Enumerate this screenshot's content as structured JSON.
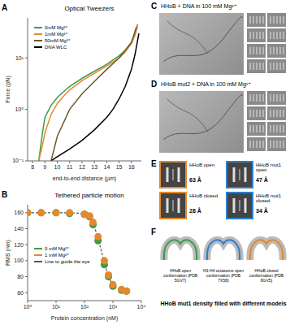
{
  "chart_data": [
    {
      "panel_label": "A",
      "type": "line",
      "title": "Optical Tweezers",
      "x_label": "end-to-end distance (µm)",
      "y_label": "Force (pN)",
      "log": "y",
      "legend": "upper left",
      "xlim": [
        7.6,
        16.8
      ],
      "xticks": [
        8,
        9,
        10,
        11,
        12,
        13,
        14,
        15,
        16
      ],
      "ylim": [
        0.1,
        60
      ],
      "yticks": [
        {
          "value": 0.1,
          "label": "10⁻¹"
        },
        {
          "value": 1,
          "label": "10⁰"
        },
        {
          "value": 10,
          "label": "10¹"
        }
      ],
      "series": [
        {
          "name": "0mM Mg²⁺",
          "color": "#3f9a4c",
          "x": [
            8.5,
            8.8,
            9,
            9.5,
            10,
            10.5,
            11,
            12,
            13,
            14,
            15,
            15.5,
            16,
            16.3,
            16.5
          ],
          "values": [
            0.1,
            0.35,
            0.7,
            1.2,
            1.7,
            2.2,
            2.8,
            4,
            5.5,
            7.5,
            11,
            14,
            20,
            30,
            45
          ]
        },
        {
          "name": "1mM Mg²⁺",
          "color": "#e4892c",
          "x": [
            8.5,
            8.8,
            9,
            9.5,
            10,
            10.5,
            11,
            12,
            13,
            14,
            15,
            15.5,
            16,
            16.3,
            16.5
          ],
          "values": [
            0.1,
            0.2,
            0.35,
            0.8,
            1.3,
            1.8,
            2.4,
            3.6,
            5,
            7,
            10,
            13,
            19,
            28,
            42
          ]
        },
        {
          "name": "50mM Mg²⁺",
          "color": "#6b5a2a",
          "x": [
            9.5,
            10,
            11,
            12,
            13,
            14,
            15,
            16,
            16.4
          ],
          "values": [
            0.1,
            0.3,
            1,
            2,
            3.5,
            6,
            10,
            20,
            40
          ]
        },
        {
          "name": "DNA WLC",
          "color": "#000000",
          "x": [
            9.5,
            10,
            11,
            12,
            13,
            14,
            14.5,
            15,
            15.5,
            16,
            16.3,
            16.6
          ],
          "values": [
            0.1,
            0.12,
            0.17,
            0.25,
            0.4,
            0.7,
            1,
            1.6,
            2.8,
            6,
            12,
            30
          ]
        }
      ]
    },
    {
      "panel_label": "B",
      "type": "scatter",
      "title": "Tethered particle motion",
      "x_label": "Protein concentration (nM)",
      "y_label": "RMS (nm)",
      "log": "x",
      "legend": "left",
      "xlim": [
        1,
        10000
      ],
      "xticks": [
        {
          "value": 1,
          "label": "10⁰"
        },
        {
          "value": 10,
          "label": "10¹"
        },
        {
          "value": 100,
          "label": "10²"
        },
        {
          "value": 1000,
          "label": "10³"
        },
        {
          "value": 10000,
          "label": "10⁴"
        }
      ],
      "ylim": [
        50,
        170
      ],
      "yticks": [
        60,
        80,
        100,
        120,
        140,
        160
      ],
      "x": [
        1,
        3,
        10,
        30,
        100,
        150,
        200,
        300,
        500,
        700,
        1000,
        2000,
        3000
      ],
      "series": [
        {
          "name": "0 mM Mg²⁺",
          "color": "#3f9a4c",
          "marker": "circle",
          "values": [
            160,
            160,
            160,
            159,
            158,
            155,
            145,
            125,
            95,
            80,
            68,
            63,
            62
          ]
        },
        {
          "name": "1 mM Mg²⁺",
          "color": "#e4892c",
          "marker": "circle",
          "values": [
            160,
            160,
            160,
            160,
            158,
            156,
            148,
            130,
            100,
            82,
            70,
            64,
            62
          ]
        },
        {
          "name": "Line to guide the eye",
          "color": "#555555",
          "type": "line",
          "line_style": "dashed",
          "values": [
            160,
            160,
            160,
            160,
            159,
            156,
            148,
            128,
            98,
            80,
            68,
            63,
            62
          ]
        }
      ]
    }
  ],
  "panels": {
    "C": {
      "label": "C",
      "title": "HHoB + DNA in 100 mM Mg²⁺"
    },
    "D": {
      "label": "D",
      "title": "HHoB mut2 + DNA in 100 mM Mg²⁺"
    },
    "E": {
      "label": "E",
      "items": [
        {
          "name": "HHoB open",
          "distance": "63 Å",
          "color": "#e4892c"
        },
        {
          "name": "HHoB mut1 open",
          "distance": "47 Å",
          "color": "#2f7fd0"
        },
        {
          "name": "HHoB closed",
          "distance": "28 Å",
          "color": "#e4892c"
        },
        {
          "name": "HHoB mut1 closed",
          "distance": "34 Å",
          "color": "#2f7fd0"
        }
      ]
    },
    "F": {
      "label": "F",
      "title": "HHoB mut1 density filled with different models",
      "models": [
        {
          "name": "HHoB open conformation (PDB 5GV7)",
          "color": "#3f9a4c"
        },
        {
          "name": "H3-H4 octasome open conformation (PDB 7X58)",
          "color": "#2f7fd0"
        },
        {
          "name": "HHoB closed conformation (PDB 8GV5)",
          "color": "#e4892c"
        }
      ]
    }
  }
}
